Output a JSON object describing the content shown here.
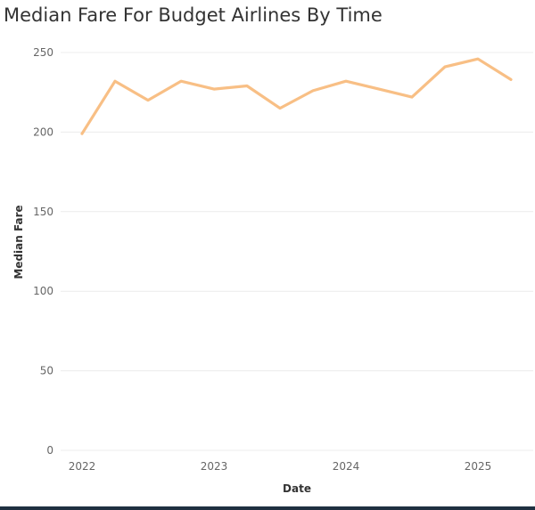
{
  "chart_data": {
    "type": "line",
    "title": "Median Fare For Budget Airlines By Time",
    "xlabel": "Date",
    "ylabel": "Median Fare",
    "x_tick_labels": [
      "2022",
      "2023",
      "2024",
      "2025"
    ],
    "y_tick_labels": [
      "0",
      "50",
      "100",
      "150",
      "200",
      "250"
    ],
    "ylim": [
      0,
      250
    ],
    "grid": true,
    "series": [
      {
        "x": [
          "2022-01",
          "2022-04",
          "2022-07",
          "2022-10",
          "2023-01",
          "2023-04",
          "2023-07",
          "2023-10",
          "2024-01",
          "2024-04",
          "2024-07",
          "2024-10",
          "2025-01",
          "2025-04"
        ],
        "values": [
          199,
          232,
          220,
          232,
          227,
          229,
          215,
          226,
          232,
          227,
          222,
          241,
          246,
          233
        ],
        "color": "#f8bf85"
      }
    ]
  },
  "colors": {
    "line": "#f8bf85",
    "grid": "#ececec",
    "tick_text": "#666666",
    "title_text": "#333333"
  }
}
